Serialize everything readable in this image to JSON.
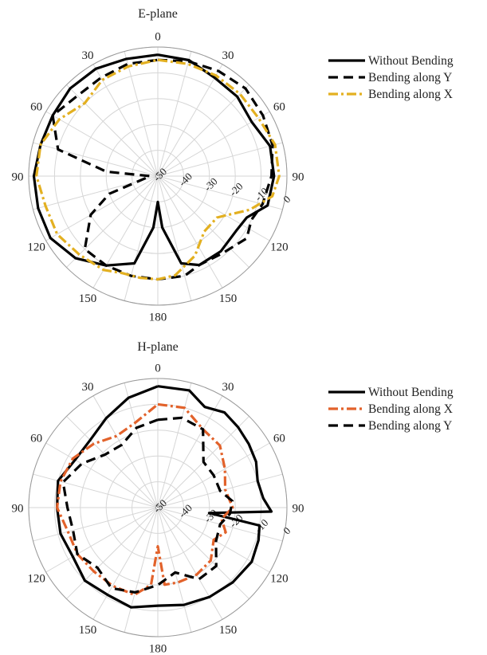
{
  "chart_data": [
    {
      "type": "line",
      "subtype": "polar",
      "title": "E-plane",
      "r_range": [
        -50,
        0
      ],
      "r_ticks": [
        -50,
        -40,
        -30,
        -20,
        -10,
        0
      ],
      "r_tick_labels": [
        "-50",
        "-40",
        "-30",
        "-20",
        "-10",
        "0"
      ],
      "angle_ticks": [
        0,
        30,
        60,
        90,
        120,
        150,
        180,
        210,
        240,
        270,
        300,
        330
      ],
      "angle_labels": [
        "0",
        "30",
        "60",
        "90",
        "120",
        "150",
        "180",
        "150",
        "120",
        "90",
        "60",
        "30"
      ],
      "grid": true,
      "legend_position": "top-right",
      "series": [
        {
          "name": "Without Bending",
          "color": "#000000",
          "dash": "solid",
          "angles": [
            0,
            15,
            30,
            45,
            60,
            75,
            90,
            105,
            115,
            125,
            140,
            155,
            165,
            175,
            180,
            185,
            195,
            210,
            225,
            240,
            255,
            270,
            285,
            300,
            315,
            330,
            345
          ],
          "values": [
            -3,
            -3.5,
            -6,
            -6.5,
            -8,
            -5,
            -5,
            -6,
            -12,
            -13,
            -12,
            -12,
            -15,
            -30,
            -40,
            -30,
            -15,
            -10,
            -5,
            -2,
            -2,
            -2,
            -3,
            -3,
            -2,
            -2,
            -3
          ]
        },
        {
          "name": "Bending along Y",
          "color": "#000000",
          "dash": "dashed",
          "angles": [
            0,
            15,
            30,
            45,
            60,
            75,
            90,
            105,
            115,
            125,
            140,
            155,
            165,
            180,
            195,
            210,
            225,
            240,
            250,
            260,
            270,
            275,
            285,
            300,
            315,
            330,
            345
          ],
          "values": [
            -5,
            -4,
            -3,
            -2,
            -3,
            -4,
            -6,
            -8,
            -10,
            -8,
            -11,
            -12,
            -10,
            -10,
            -10,
            -10,
            -10,
            -20,
            -30,
            -45,
            -47,
            -30,
            -10,
            -3,
            -6,
            -6,
            -5
          ]
        },
        {
          "name": "Bending along X",
          "color": "#E3B021",
          "dash": "dashdot",
          "angles": [
            0,
            15,
            30,
            45,
            60,
            75,
            90,
            100,
            110,
            125,
            140,
            155,
            170,
            180,
            190,
            200,
            210,
            225,
            240,
            255,
            270,
            285,
            300,
            315,
            330,
            345
          ],
          "values": [
            -5,
            -5,
            -5,
            -5,
            -5,
            -3,
            -3,
            -5,
            -12,
            -22,
            -22,
            -16,
            -11,
            -10,
            -10,
            -10,
            -8,
            -7,
            -5,
            -5,
            -3,
            -3,
            -6,
            -10,
            -7,
            -6
          ]
        }
      ]
    },
    {
      "type": "line",
      "subtype": "polar",
      "title": "H-plane",
      "r_range": [
        -50,
        0
      ],
      "r_ticks": [
        -50,
        -40,
        -30,
        -20,
        -10,
        0
      ],
      "r_tick_labels": [
        "-50",
        "-40",
        "-30",
        "-20",
        "-10",
        "0"
      ],
      "angle_ticks": [
        0,
        30,
        60,
        90,
        120,
        150,
        180,
        210,
        240,
        270,
        300,
        330
      ],
      "angle_labels": [
        "0",
        "30",
        "60",
        "90",
        "120",
        "150",
        "180",
        "150",
        "120",
        "90",
        "60",
        "30"
      ],
      "grid": true,
      "legend_position": "top-right",
      "series": [
        {
          "name": "Without Bending",
          "color": "#000000",
          "dash": "solid",
          "angles": [
            0,
            15,
            25,
            35,
            45,
            55,
            65,
            75,
            85,
            92,
            96,
            100,
            108,
            120,
            135,
            150,
            165,
            180,
            195,
            210,
            225,
            240,
            255,
            270,
            285,
            300,
            315,
            330,
            345
          ],
          "values": [
            -3,
            -3,
            -7,
            -5,
            -6,
            -7,
            -8,
            -10,
            -9,
            -6,
            -30,
            -10,
            -9,
            -8,
            -9,
            -10,
            -11,
            -12,
            -10,
            -11,
            -10,
            -12,
            -11,
            -11,
            -10,
            -13,
            -13,
            -10,
            -6
          ]
        },
        {
          "name": "Bending along X",
          "color": "#E2622B",
          "dash": "dashdot",
          "angles": [
            0,
            15,
            30,
            45,
            60,
            75,
            90,
            100,
            110,
            120,
            135,
            150,
            165,
            175,
            180,
            185,
            195,
            210,
            225,
            240,
            255,
            270,
            285,
            300,
            315,
            330,
            345
          ],
          "values": [
            -10,
            -10,
            -15,
            -16,
            -20,
            -23,
            -21,
            -25,
            -22,
            -25,
            -21,
            -20,
            -20,
            -20,
            -35,
            -20,
            -15,
            -15,
            -15,
            -14,
            -14,
            -11,
            -11,
            -12,
            -15,
            -18,
            -16
          ]
        },
        {
          "name": "Bending along Y",
          "color": "#000000",
          "dash": "dashed",
          "angles": [
            0,
            15,
            30,
            45,
            60,
            75,
            85,
            95,
            105,
            120,
            135,
            150,
            165,
            180,
            195,
            210,
            225,
            240,
            255,
            270,
            285,
            300,
            315,
            330,
            345
          ],
          "values": [
            -16,
            -14,
            -15,
            -25,
            -25,
            -25,
            -21,
            -22,
            -25,
            -24,
            -18,
            -18,
            -24,
            -20,
            -16,
            -14,
            -17,
            -14,
            -16,
            -15,
            -12,
            -16,
            -21,
            -22,
            -18
          ]
        }
      ]
    }
  ]
}
